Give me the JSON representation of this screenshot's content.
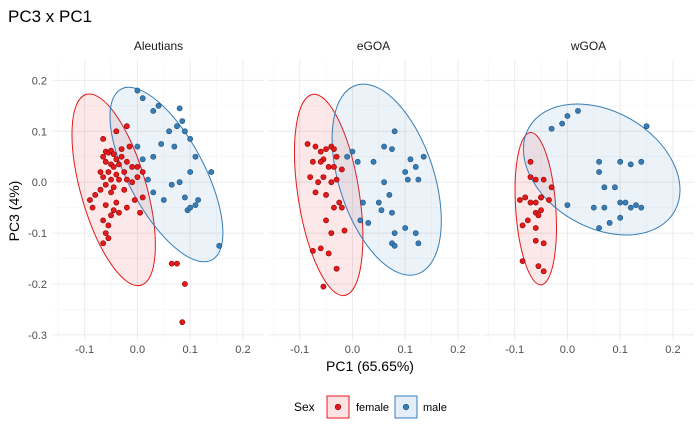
{
  "chart_data": {
    "type": "scatter",
    "title": "PC3 x PC1",
    "xlabel": "PC1 (65.65%)",
    "ylabel": "PC3 (4%)",
    "xlim": [
      -0.16,
      0.22
    ],
    "ylim": [
      -0.31,
      0.24
    ],
    "x_ticks": [
      -0.1,
      0.0,
      0.1,
      0.2
    ],
    "x_tick_labels": [
      "-0.1",
      "0.0",
      "0.1",
      "0.2"
    ],
    "y_ticks": [
      0.2,
      0.1,
      0.0,
      -0.1,
      -0.2,
      -0.3
    ],
    "y_tick_labels": [
      "0.2",
      "0.1",
      "0.0",
      "-0.1",
      "-0.2",
      "-0.3"
    ],
    "grid": true,
    "legend": {
      "title": "Sex",
      "position": "bottom",
      "entries": [
        {
          "label": "female",
          "color": "#e41a1c"
        },
        {
          "label": "male",
          "color": "#377eb8"
        }
      ]
    },
    "panels": [
      {
        "label": "Aleutians",
        "series": [
          {
            "name": "female",
            "color": "#e41a1c",
            "points": [
              [
                -0.06,
                0.06
              ],
              [
                -0.055,
                0.058
              ],
              [
                -0.05,
                0.062
              ],
              [
                -0.045,
                0.055
              ],
              [
                -0.065,
                0.05
              ],
              [
                -0.03,
                0.05
              ],
              [
                -0.04,
                0.045
              ],
              [
                -0.06,
                0.04
              ],
              [
                -0.05,
                0.035
              ],
              [
                -0.045,
                0.03
              ],
              [
                -0.035,
                0.035
              ],
              [
                -0.02,
                0.04
              ],
              [
                -0.015,
                0.07
              ],
              [
                -0.03,
                0.065
              ],
              [
                -0.025,
                0.02
              ],
              [
                -0.04,
                0.015
              ],
              [
                -0.055,
                0.02
              ],
              [
                -0.07,
                0.02
              ],
              [
                -0.065,
                0.01
              ],
              [
                -0.05,
                0.005
              ],
              [
                -0.035,
                0.005
              ],
              [
                -0.02,
                0.005
              ],
              [
                -0.01,
                0.03
              ],
              [
                0.0,
                0.01
              ],
              [
                0.01,
                0.02
              ],
              [
                -0.06,
                -0.005
              ],
              [
                -0.045,
                -0.01
              ],
              [
                -0.025,
                -0.015
              ],
              [
                -0.05,
                -0.02
              ],
              [
                -0.07,
                -0.015
              ],
              [
                -0.08,
                -0.025
              ],
              [
                -0.09,
                -0.035
              ],
              [
                -0.085,
                -0.05
              ],
              [
                -0.06,
                -0.045
              ],
              [
                -0.04,
                -0.04
              ],
              [
                -0.045,
                -0.055
              ],
              [
                -0.05,
                -0.065
              ],
              [
                -0.065,
                -0.075
              ],
              [
                -0.055,
                -0.085
              ],
              [
                -0.06,
                -0.1
              ],
              [
                -0.055,
                -0.11
              ],
              [
                -0.065,
                -0.12
              ],
              [
                -0.035,
                -0.06
              ],
              [
                -0.02,
                -0.05
              ],
              [
                -0.005,
                -0.035
              ],
              [
                0.01,
                -0.03
              ],
              [
                0.005,
                -0.06
              ],
              [
                -0.01,
                0.0
              ],
              [
                0.0,
                0.03
              ],
              [
                -0.04,
                0.1
              ],
              [
                -0.02,
                0.11
              ],
              [
                -0.065,
                0.085
              ],
              [
                0.075,
                -0.16
              ],
              [
                0.09,
                -0.2
              ],
              [
                0.085,
                -0.275
              ],
              [
                0.065,
                -0.16
              ]
            ]
          },
          {
            "name": "male",
            "color": "#377eb8",
            "points": [
              [
                0.0,
                0.18
              ],
              [
                0.01,
                0.165
              ],
              [
                0.03,
                0.14
              ],
              [
                0.04,
                0.15
              ],
              [
                0.08,
                0.145
              ],
              [
                0.085,
                0.12
              ],
              [
                0.06,
                0.1
              ],
              [
                0.075,
                0.11
              ],
              [
                0.09,
                0.1
              ],
              [
                0.1,
                0.085
              ],
              [
                0.0,
                0.07
              ],
              [
                0.01,
                0.045
              ],
              [
                0.03,
                0.05
              ],
              [
                0.045,
                0.075
              ],
              [
                0.07,
                0.07
              ],
              [
                0.11,
                0.05
              ],
              [
                0.1,
                0.02
              ],
              [
                0.08,
                0.0
              ],
              [
                0.065,
                -0.005
              ],
              [
                0.09,
                -0.03
              ],
              [
                0.095,
                -0.055
              ],
              [
                0.1,
                -0.05
              ],
              [
                0.11,
                -0.045
              ],
              [
                0.14,
                0.02
              ],
              [
                0.155,
                -0.125
              ],
              [
                0.05,
                -0.035
              ],
              [
                0.03,
                -0.02
              ],
              [
                0.02,
                0.005
              ],
              [
                0.115,
                -0.035
              ]
            ]
          }
        ],
        "ellipses": [
          {
            "series": "female",
            "center": [
              -0.045,
              -0.015
            ],
            "rx": 0.062,
            "ry": 0.195,
            "rotation_deg": 16
          },
          {
            "series": "male",
            "center": [
              0.055,
              0.015
            ],
            "rx": 0.072,
            "ry": 0.19,
            "rotation_deg": 28
          }
        ]
      },
      {
        "label": "eGOA",
        "series": [
          {
            "name": "female",
            "color": "#e41a1c",
            "points": [
              [
                -0.07,
                0.07
              ],
              [
                -0.06,
                0.06
              ],
              [
                -0.05,
                0.065
              ],
              [
                -0.04,
                0.07
              ],
              [
                -0.035,
                0.065
              ],
              [
                -0.03,
                0.05
              ],
              [
                -0.055,
                0.045
              ],
              [
                -0.06,
                0.04
              ],
              [
                -0.045,
                0.03
              ],
              [
                -0.035,
                0.03
              ],
              [
                -0.02,
                0.025
              ],
              [
                -0.03,
                0.005
              ],
              [
                -0.055,
                0.01
              ],
              [
                -0.075,
                0.04
              ],
              [
                -0.085,
                0.075
              ],
              [
                -0.08,
                0.01
              ],
              [
                -0.07,
                -0.02
              ],
              [
                -0.04,
                0.0
              ],
              [
                -0.05,
                -0.025
              ],
              [
                -0.035,
                -0.05
              ],
              [
                -0.025,
                -0.04
              ],
              [
                -0.05,
                -0.075
              ],
              [
                -0.04,
                -0.1
              ],
              [
                -0.015,
                -0.095
              ],
              [
                -0.045,
                -0.14
              ],
              [
                -0.06,
                -0.13
              ],
              [
                -0.075,
                -0.135
              ],
              [
                -0.03,
                -0.17
              ],
              [
                -0.055,
                -0.205
              ],
              [
                -0.02,
                -0.05
              ],
              [
                -0.065,
                0.0
              ]
            ]
          },
          {
            "name": "male",
            "color": "#377eb8",
            "points": [
              [
                0.08,
                0.1
              ],
              [
                0.06,
                0.07
              ],
              [
                0.075,
                0.065
              ],
              [
                0.0,
                0.06
              ],
              [
                -0.01,
                0.05
              ],
              [
                0.01,
                0.04
              ],
              [
                0.04,
                0.04
              ],
              [
                0.11,
                0.045
              ],
              [
                0.12,
                0.03
              ],
              [
                0.1,
                0.02
              ],
              [
                0.105,
                0.005
              ],
              [
                0.125,
                0.005
              ],
              [
                0.135,
                0.05
              ],
              [
                0.06,
                0.0
              ],
              [
                0.07,
                -0.025
              ],
              [
                0.05,
                -0.04
              ],
              [
                0.055,
                -0.055
              ],
              [
                0.075,
                -0.06
              ],
              [
                0.02,
                -0.04
              ],
              [
                0.015,
                -0.075
              ],
              [
                0.03,
                -0.08
              ],
              [
                0.08,
                -0.1
              ],
              [
                0.1,
                -0.09
              ],
              [
                0.12,
                -0.1
              ],
              [
                0.075,
                -0.12
              ],
              [
                0.125,
                -0.12
              ],
              [
                0.08,
                -0.125
              ]
            ]
          }
        ],
        "ellipses": [
          {
            "series": "female",
            "center": [
              -0.045,
              -0.025
            ],
            "rx": 0.058,
            "ry": 0.2,
            "rotation_deg": 9
          },
          {
            "series": "male",
            "center": [
              0.065,
              0.005
            ],
            "rx": 0.09,
            "ry": 0.195,
            "rotation_deg": 18
          }
        ]
      },
      {
        "label": "wGOA",
        "series": [
          {
            "name": "female",
            "color": "#e41a1c",
            "points": [
              [
                -0.07,
                0.04
              ],
              [
                -0.07,
                0.01
              ],
              [
                -0.06,
                0.005
              ],
              [
                -0.045,
                0.005
              ],
              [
                -0.03,
                -0.01
              ],
              [
                -0.09,
                -0.035
              ],
              [
                -0.08,
                -0.03
              ],
              [
                -0.07,
                -0.04
              ],
              [
                -0.06,
                -0.04
              ],
              [
                -0.05,
                -0.03
              ],
              [
                -0.05,
                -0.055
              ],
              [
                -0.035,
                -0.035
              ],
              [
                -0.075,
                -0.075
              ],
              [
                -0.06,
                -0.06
              ],
              [
                -0.055,
                -0.065
              ],
              [
                -0.085,
                -0.085
              ],
              [
                -0.06,
                -0.09
              ],
              [
                -0.06,
                -0.115
              ],
              [
                -0.045,
                -0.12
              ],
              [
                -0.085,
                -0.155
              ],
              [
                -0.055,
                -0.165
              ],
              [
                -0.045,
                -0.175
              ],
              [
                -0.05,
                -0.03
              ]
            ]
          },
          {
            "name": "male",
            "color": "#377eb8",
            "points": [
              [
                0.02,
                0.14
              ],
              [
                0.0,
                0.13
              ],
              [
                -0.01,
                0.115
              ],
              [
                -0.03,
                0.105
              ],
              [
                0.15,
                0.11
              ],
              [
                0.06,
                0.04
              ],
              [
                0.1,
                0.04
              ],
              [
                0.12,
                0.035
              ],
              [
                0.14,
                0.04
              ],
              [
                0.06,
                0.02
              ],
              [
                0.07,
                -0.01
              ],
              [
                0.09,
                -0.01
              ],
              [
                0.1,
                -0.04
              ],
              [
                0.11,
                -0.04
              ],
              [
                0.12,
                -0.05
              ],
              [
                0.13,
                -0.045
              ],
              [
                0.14,
                -0.05
              ],
              [
                0.1,
                -0.07
              ],
              [
                0.08,
                -0.08
              ],
              [
                0.06,
                -0.09
              ],
              [
                0.0,
                -0.045
              ],
              [
                0.05,
                -0.05
              ],
              [
                0.07,
                -0.05
              ]
            ]
          }
        ],
        "ellipses": [
          {
            "series": "female",
            "center": [
              -0.06,
              -0.052
            ],
            "rx": 0.038,
            "ry": 0.15,
            "rotation_deg": 4
          },
          {
            "series": "male",
            "center": [
              0.065,
              0.025
            ],
            "rx": 0.11,
            "ry": 0.165,
            "rotation_deg": 60
          }
        ]
      }
    ]
  }
}
